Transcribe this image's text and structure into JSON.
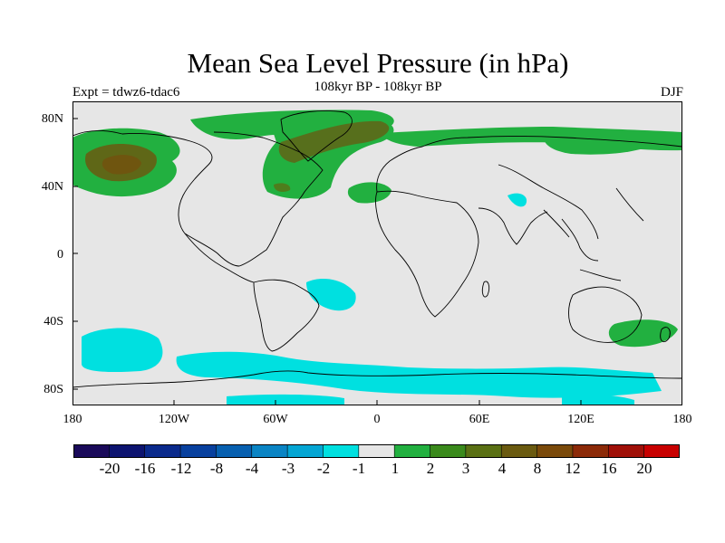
{
  "figure": {
    "title": "Mean Sea Level Pressure (in hPa)",
    "subtitle": "108kyr BP - 108kyr BP",
    "experiment": "Expt = tdwz6-tdac6",
    "season": "DJF"
  },
  "axes": {
    "y_ticks": [
      "80N",
      "40N",
      "0",
      "40S",
      "80S"
    ],
    "x_ticks": [
      "180",
      "120W",
      "60W",
      "0",
      "60E",
      "120E",
      "180"
    ]
  },
  "legend": {
    "labels": [
      "-20",
      "-16",
      "-12",
      "-8",
      "-4",
      "-3",
      "-2",
      "-1",
      "1",
      "2",
      "3",
      "4",
      "8",
      "12",
      "16",
      "20"
    ],
    "colors": [
      "#1a0a5a",
      "#0d1470",
      "#0a2a8c",
      "#08409e",
      "#0760b0",
      "#0a84c4",
      "#04a6d4",
      "#00e0e0",
      "#e6e6e6",
      "#22b040",
      "#3a8a1c",
      "#5a7014",
      "#6a5a10",
      "#7a4a0a",
      "#8c2a08",
      "#a01008",
      "#c80000"
    ]
  },
  "colors": {
    "land_outline": "#000000",
    "background": "#e6e6e6"
  }
}
